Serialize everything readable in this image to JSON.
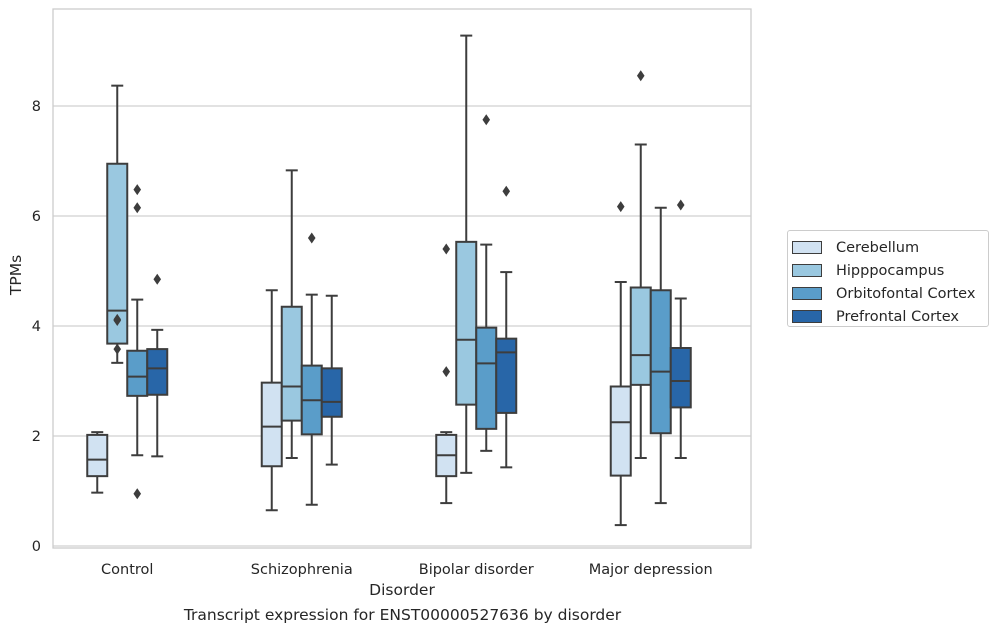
{
  "caption": "Transcript expression for ENST00000527636 by disorder",
  "chart_data": {
    "type": "box",
    "xlabel": "Disorder",
    "ylabel": "TPMs",
    "ylim": [
      0,
      9.75
    ],
    "yticks": [
      "0",
      "2",
      "4",
      "6",
      "8"
    ],
    "grid": true,
    "legend_position": "right",
    "categories": [
      "Control",
      "Schizophrenia",
      "Bipolar disorder",
      "Major depression"
    ],
    "series": [
      {
        "name": "Cerebellum",
        "color": "#d1e2f2",
        "boxes": [
          {
            "whislo": 0.97,
            "q1": 1.27,
            "med": 1.57,
            "q3": 2.02,
            "whishi": 2.07,
            "fliers": []
          },
          {
            "whislo": 0.65,
            "q1": 1.45,
            "med": 2.17,
            "q3": 2.97,
            "whishi": 4.65,
            "fliers": []
          },
          {
            "whislo": 0.78,
            "q1": 1.27,
            "med": 1.65,
            "q3": 2.02,
            "whishi": 2.07,
            "fliers": [
              3.17,
              5.4
            ]
          },
          {
            "whislo": 0.38,
            "q1": 1.28,
            "med": 2.25,
            "q3": 2.9,
            "whishi": 4.8,
            "fliers": [
              6.17
            ]
          }
        ]
      },
      {
        "name": "Hipppocampus",
        "color": "#9ac8e0",
        "boxes": [
          {
            "whislo": 3.33,
            "q1": 3.68,
            "med": 4.28,
            "q3": 6.95,
            "whishi": 8.37,
            "fliers": [
              3.58,
              4.1,
              4.12
            ]
          },
          {
            "whislo": 1.6,
            "q1": 2.28,
            "med": 2.9,
            "q3": 4.35,
            "whishi": 6.83,
            "fliers": []
          },
          {
            "whislo": 1.33,
            "q1": 2.57,
            "med": 3.75,
            "q3": 5.53,
            "whishi": 9.28,
            "fliers": []
          },
          {
            "whislo": 1.6,
            "q1": 2.93,
            "med": 3.47,
            "q3": 4.7,
            "whishi": 7.3,
            "fliers": [
              8.55
            ]
          }
        ]
      },
      {
        "name": "Orbitofontal Cortex",
        "color": "#5a9dc9",
        "boxes": [
          {
            "whislo": 1.65,
            "q1": 2.73,
            "med": 3.08,
            "q3": 3.55,
            "whishi": 4.48,
            "fliers": [
              0.95,
              6.15,
              6.48
            ]
          },
          {
            "whislo": 0.75,
            "q1": 2.03,
            "med": 2.65,
            "q3": 3.28,
            "whishi": 4.57,
            "fliers": [
              5.6
            ]
          },
          {
            "whislo": 1.73,
            "q1": 2.13,
            "med": 3.32,
            "q3": 3.97,
            "whishi": 5.48,
            "fliers": [
              7.75
            ]
          },
          {
            "whislo": 0.78,
            "q1": 2.05,
            "med": 3.17,
            "q3": 4.65,
            "whishi": 6.15,
            "fliers": []
          }
        ]
      },
      {
        "name": "Prefrontal Cortex",
        "color": "#2866a8",
        "boxes": [
          {
            "whislo": 1.63,
            "q1": 2.75,
            "med": 3.23,
            "q3": 3.58,
            "whishi": 3.93,
            "fliers": [
              4.85
            ]
          },
          {
            "whislo": 1.48,
            "q1": 2.35,
            "med": 2.62,
            "q3": 3.23,
            "whishi": 4.55,
            "fliers": []
          },
          {
            "whislo": 1.43,
            "q1": 2.42,
            "med": 3.52,
            "q3": 3.77,
            "whishi": 4.98,
            "fliers": [
              6.45
            ]
          },
          {
            "whislo": 1.6,
            "q1": 2.52,
            "med": 3.0,
            "q3": 3.6,
            "whishi": 4.5,
            "fliers": [
              6.2
            ]
          }
        ]
      }
    ]
  }
}
